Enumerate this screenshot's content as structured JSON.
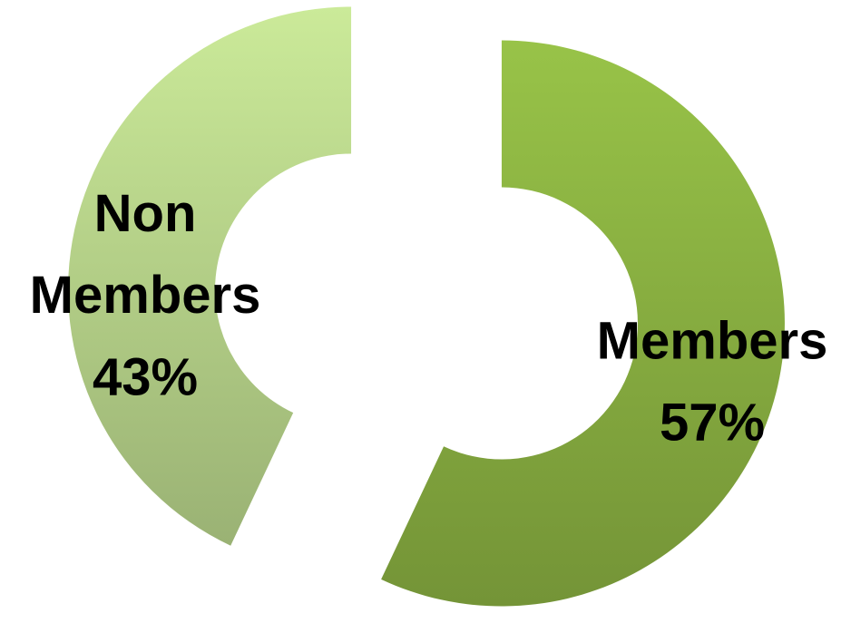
{
  "chart_data": {
    "type": "donut",
    "categories": [
      "Members",
      "Non Members"
    ],
    "values": [
      57,
      43
    ],
    "value_labels": [
      "57%",
      "43%"
    ],
    "colors": [
      "#8db543",
      "#bcd98e"
    ]
  }
}
